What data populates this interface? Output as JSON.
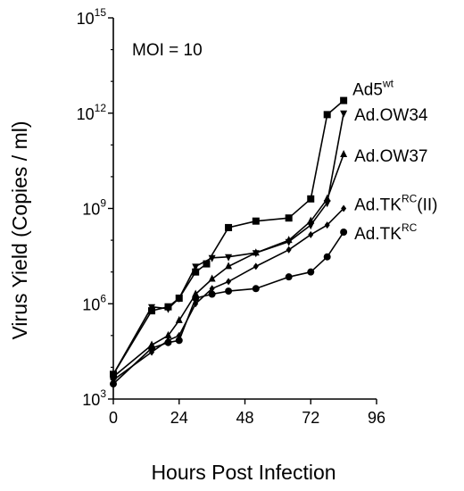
{
  "chart_data": {
    "type": "line",
    "annotation": "MOI = 10",
    "xlabel": "Hours Post Infection",
    "ylabel": "Virus Yield (Copies / ml)",
    "xlim": [
      0,
      96
    ],
    "x_ticks": [
      0,
      24,
      48,
      72,
      96
    ],
    "ylim": [
      1000,
      1000000000000000
    ],
    "yscale": "log",
    "y_ticks": [
      {
        "value": 1000,
        "base": "10",
        "exp": "3"
      },
      {
        "value": 1000000,
        "base": "10",
        "exp": "6"
      },
      {
        "value": 1000000000,
        "base": "10",
        "exp": "9"
      },
      {
        "value": 1000000000000,
        "base": "10",
        "exp": "12"
      },
      {
        "value": 1000000000000000,
        "base": "10",
        "exp": "15"
      }
    ],
    "grid": false,
    "series": [
      {
        "name": "Ad5wt",
        "label_main": "Ad5",
        "label_sup": "wt",
        "label_tail": "",
        "marker": "square",
        "x": [
          0,
          14,
          20,
          24,
          30,
          34,
          42,
          52,
          64,
          72,
          78,
          84
        ],
        "y": [
          6000,
          600000,
          800000,
          1500000,
          10000000,
          18000000,
          250000000,
          400000000,
          500000000,
          2000000000,
          900000000000,
          2500000000000
        ]
      },
      {
        "name": "Ad.OW34",
        "label_main": "Ad.OW34",
        "label_sup": "",
        "label_tail": "",
        "marker": "triangle-down",
        "x": [
          0,
          14,
          20,
          24,
          30,
          36,
          42,
          52,
          64,
          72,
          78,
          84
        ],
        "y": [
          6000,
          800000,
          700000,
          1500000,
          15000000,
          28000000,
          30000000,
          40000000,
          90000000,
          300000000,
          1500000000,
          1000000000000
        ]
      },
      {
        "name": "Ad.OW37",
        "label_main": "Ad.OW37",
        "label_sup": "",
        "label_tail": "",
        "marker": "triangle-up",
        "x": [
          0,
          14,
          20,
          24,
          30,
          36,
          42,
          52,
          64,
          72,
          78,
          84
        ],
        "y": [
          5000,
          50000,
          100000,
          300000,
          2000000,
          6000000,
          15000000,
          40000000,
          100000000,
          400000000,
          2000000000,
          50000000000
        ]
      },
      {
        "name": "Ad.TKRC(II)",
        "label_main": "Ad.TK",
        "label_sup": "RC",
        "label_tail": "(II)",
        "marker": "diamond",
        "x": [
          0,
          14,
          20,
          24,
          30,
          36,
          42,
          52,
          64,
          72,
          78,
          84
        ],
        "y": [
          4000,
          30000,
          70000,
          100000,
          1000000,
          3000000,
          5000000,
          15000000,
          50000000,
          150000000,
          300000000,
          1000000000
        ]
      },
      {
        "name": "Ad.TKRC",
        "label_main": "Ad.TK",
        "label_sup": "RC",
        "label_tail": "",
        "marker": "circle",
        "x": [
          0,
          14,
          20,
          24,
          30,
          36,
          42,
          52,
          64,
          72,
          78,
          84
        ],
        "y": [
          3000,
          40000,
          60000,
          70000,
          1500000,
          2000000,
          2500000,
          3000000,
          7000000,
          10000000,
          30000000,
          180000000
        ]
      }
    ]
  }
}
